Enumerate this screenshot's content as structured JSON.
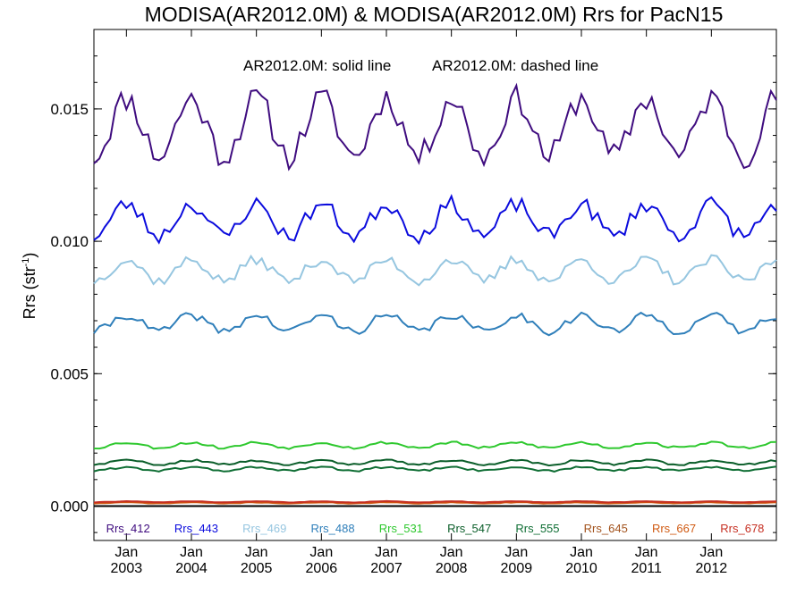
{
  "chart_data": {
    "type": "line",
    "title": "MODISA(AR2012.0M) & MODISA(AR2012.0M)  Rrs for PacN15",
    "annotation_left": "AR2012.0M: solid line",
    "annotation_right": "AR2012.0M: dashed line",
    "ylabel": "Rrs (str",
    "ylabel_sup": "-1",
    "ylabel_close": ")",
    "ylim": [
      -0.0013,
      0.018
    ],
    "yticks": [
      "0.000",
      "0.005",
      "0.010",
      "0.015"
    ],
    "ytick_values": [
      0.0,
      0.005,
      0.01,
      0.015
    ],
    "xlim": [
      "2002-07",
      "2013-01"
    ],
    "xtick_month": "Jan",
    "xticks": [
      "2003",
      "2004",
      "2005",
      "2006",
      "2007",
      "2008",
      "2009",
      "2010",
      "2011",
      "2012"
    ],
    "zero_line": true,
    "grid": false,
    "series": [
      {
        "name": "Rrs_412",
        "color": "#3f0c7f",
        "mean": 0.0143,
        "amp": 0.0011,
        "noise": 0.0005,
        "seed": 11
      },
      {
        "name": "Rrs_443",
        "color": "#0b0bdd",
        "mean": 0.0108,
        "amp": 0.0006,
        "noise": 0.0003,
        "seed": 23
      },
      {
        "name": "Rrs_469",
        "color": "#96c6e0",
        "mean": 0.0089,
        "amp": 0.0004,
        "noise": 0.0002,
        "seed": 37
      },
      {
        "name": "Rrs_488",
        "color": "#2f7fba",
        "mean": 0.0069,
        "amp": 0.0003,
        "noise": 0.00015,
        "seed": 41
      },
      {
        "name": "Rrs_531",
        "color": "#2ec82e",
        "mean": 0.0023,
        "amp": 0.0001,
        "noise": 5e-05,
        "seed": 53
      },
      {
        "name": "Rrs_547",
        "color": "#0b5e2a",
        "mean": 0.00165,
        "amp": 8e-05,
        "noise": 4e-05,
        "seed": 59
      },
      {
        "name": "Rrs_555",
        "color": "#0f6e34",
        "mean": 0.0014,
        "amp": 7e-05,
        "noise": 4e-05,
        "seed": 61
      },
      {
        "name": "Rrs_645",
        "color": "#a2521c",
        "mean": 0.00015,
        "amp": 2e-05,
        "noise": 1e-05,
        "seed": 67
      },
      {
        "name": "Rrs_667",
        "color": "#d05a12",
        "mean": 0.00012,
        "amp": 2e-05,
        "noise": 1e-05,
        "seed": 71
      },
      {
        "name": "Rrs_678",
        "color": "#c62f22",
        "mean": 0.00016,
        "amp": 2e-05,
        "noise": 1e-05,
        "seed": 73
      }
    ]
  }
}
